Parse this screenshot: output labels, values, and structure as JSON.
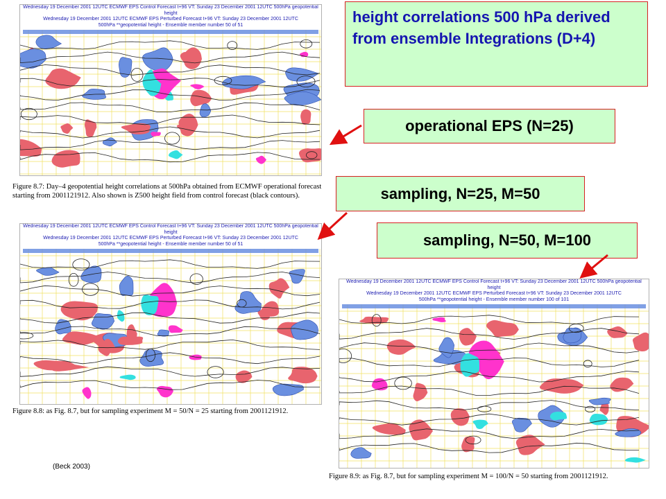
{
  "panels": [
    {
      "header": [
        "Wednesday 19 December 2001 12UTC ECMWF  EPS Control Forecast t+96 VT: Sunday 23 December 2001 12UTC 500hPa geopotential height",
        "Wednesday 19 December 2001 12UTC ECMWF  EPS Perturbed Forecast t+96 VT: Sunday 23 December 2001 12UTC",
        "500hPa **geopotential height  - Ensemble member number 50 of  51"
      ],
      "caption": "Figure 8.7: Day–4 geopotential height correlations at 500hPa obtained from ECMWF operational forecast starting from 2001121912. Also shown is Z500 height field from control forecast (black contours)."
    },
    {
      "header": [
        "Wednesday 19 December 2001 12UTC ECMWF  EPS Control Forecast t+96 VT: Sunday 23 December 2001 12UTC 500hPa geopotential height",
        "Wednesday 19 December 2001 12UTC ECMWF  EPS Perturbed Forecast t+96 VT: Sunday 23 December 2001 12UTC",
        "500hPa **geopotential height  - Ensemble member number 50 of  51"
      ],
      "caption": "Figure 8.8: as Fig. 8.7, but for sampling experiment  M = 50/N = 25 starting from 2001121912."
    },
    {
      "header": [
        "Wednesday 19 December 2001 12UTC ECMWF  EPS Control Forecast t+96 VT: Sunday 23 December 2001 12UTC 500hPa geopotential height",
        "Wednesday 19 December 2001 12UTC ECMWF  EPS Perturbed Forecast t+96 VT: Sunday 23 December 2001 12UTC",
        "500hPa **geopotential height  - Ensemble member number 100 of  101"
      ],
      "caption": "Figure 8.9: as Fig. 8.7, but for sampling experiment  M = 100/N = 50 starting from 2001121912."
    }
  ],
  "callouts": {
    "title": "height correlations 500 hPa derived from ensemble Integrations (D+4)",
    "operational": "operational EPS (N=25)",
    "sampling_25": "sampling, N=25, M=50",
    "sampling_50": "sampling, N=50, M=100"
  },
  "source": "(Beck 2003)",
  "colors": {
    "positive_high": "#ff33cc",
    "positive": "#e8646e",
    "negative": "#6a8fe0",
    "negative_strong": "#33e0e0",
    "grid": "#f0e060",
    "contour": "#222222",
    "callout_bg": "#ccffcc",
    "callout_border": "#d62020",
    "title_text": "#1515b0",
    "arrow": "#e01010"
  }
}
